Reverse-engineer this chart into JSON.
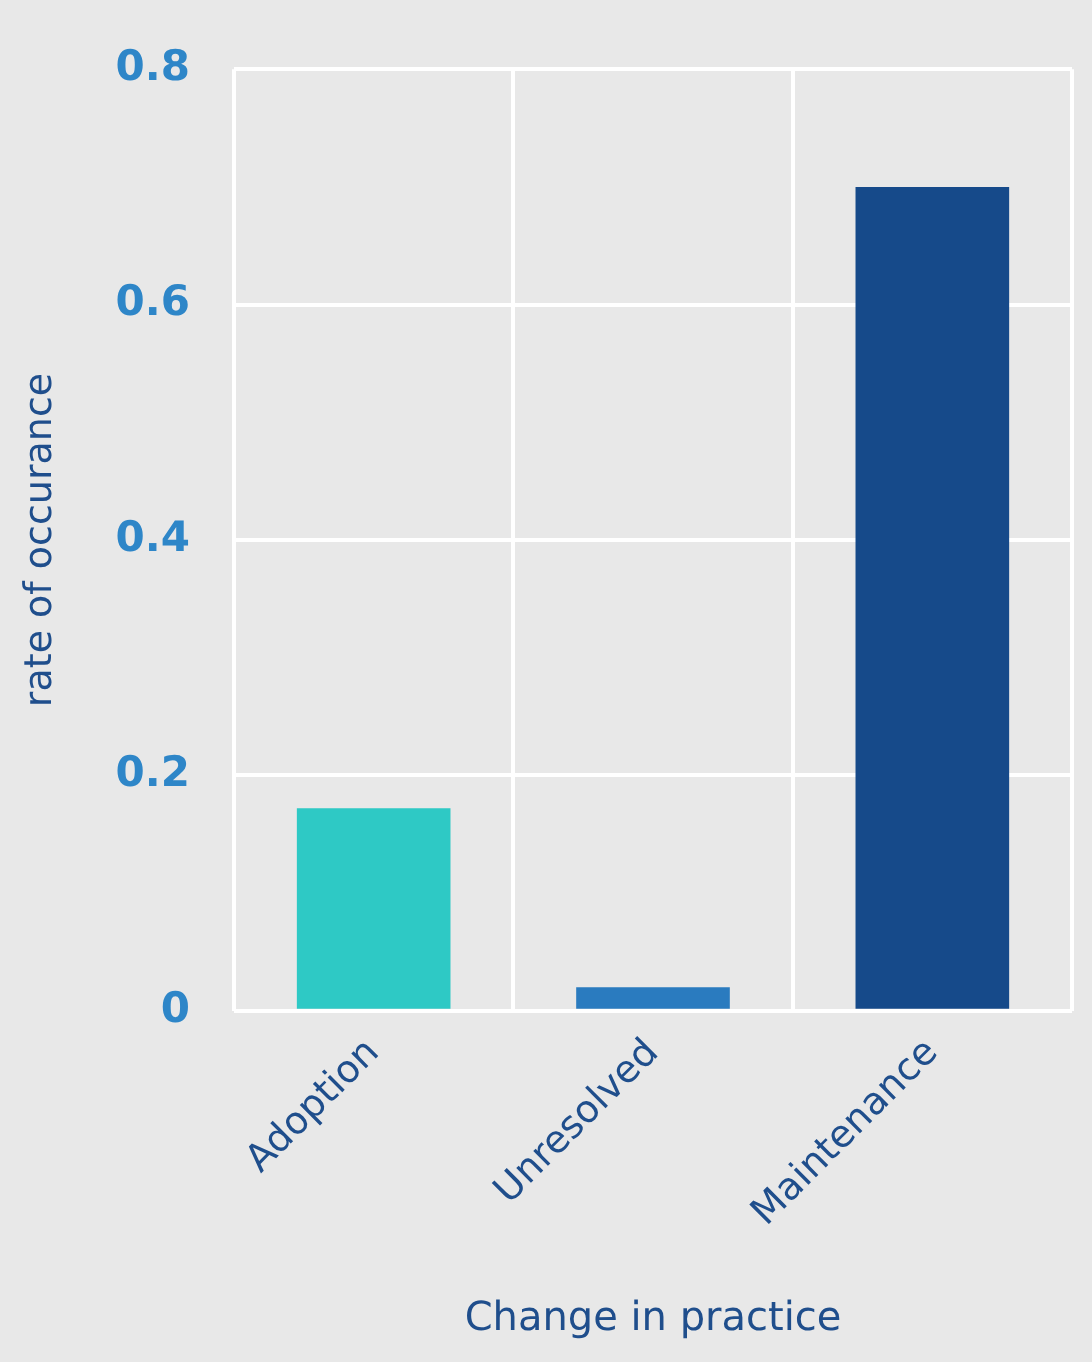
{
  "chart_data": {
    "type": "bar",
    "xlabel": "Change in practice",
    "ylabel": "rate of occurance",
    "categories": [
      "Adoption",
      "Unresolved",
      "Maintenance"
    ],
    "values": [
      0.172,
      0.02,
      0.7
    ],
    "colors": [
      "#2ec9c5",
      "#2a7bbf",
      "#164a8a"
    ],
    "ylim": [
      0,
      0.8
    ],
    "yticks": [
      0,
      {
        "value": 0.2,
        "label": "0.2"
      },
      {
        "value": 0.4,
        "label": "0.4"
      },
      {
        "value": 0.6,
        "label": "0.6"
      },
      {
        "value": 0.8,
        "label": "0.8"
      }
    ],
    "grid": true,
    "legend": false
  }
}
